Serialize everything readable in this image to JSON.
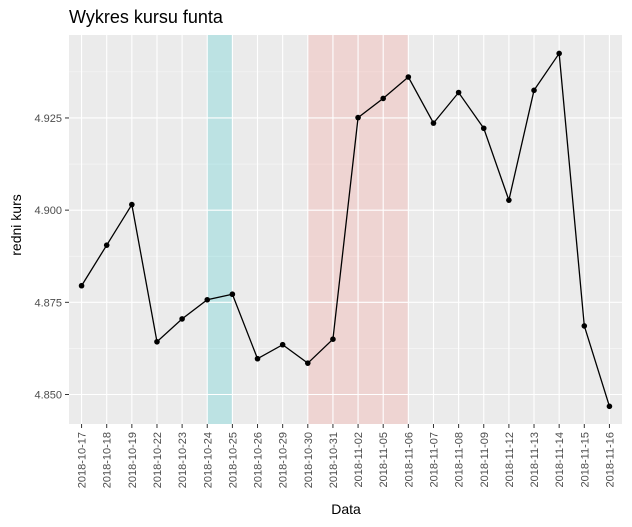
{
  "chart_data": {
    "type": "line",
    "title": "Wykres kursu funta",
    "xlabel": "Data",
    "ylabel": "redni kurs",
    "categories": [
      "2018-10-17",
      "2018-10-18",
      "2018-10-19",
      "2018-10-22",
      "2018-10-23",
      "2018-10-24",
      "2018-10-25",
      "2018-10-26",
      "2018-10-29",
      "2018-10-30",
      "2018-10-31",
      "2018-11-02",
      "2018-11-05",
      "2018-11-06",
      "2018-11-07",
      "2018-11-08",
      "2018-11-09",
      "2018-11-12",
      "2018-11-13",
      "2018-11-14",
      "2018-11-15",
      "2018-11-16"
    ],
    "values": [
      4.8795,
      4.8905,
      4.9015,
      4.8643,
      4.8705,
      4.8757,
      4.8772,
      4.8597,
      4.8635,
      4.8585,
      4.865,
      4.9251,
      4.9303,
      4.9361,
      4.9236,
      4.9319,
      4.9222,
      4.9027,
      4.9325,
      4.9425,
      4.8686,
      4.8468
    ],
    "ylim": [
      4.842,
      4.9475
    ],
    "yticks": [
      4.85,
      4.875,
      4.9,
      4.925
    ],
    "ytick_labels": [
      "4.850",
      "4.875",
      "4.900",
      "4.925"
    ],
    "highlight_bands": [
      {
        "from": "2018-10-24",
        "to": "2018-10-25",
        "color": "#00bfc4",
        "opacity": 0.2
      },
      {
        "from": "2018-10-30",
        "to": "2018-11-06",
        "color": "#f8766d",
        "opacity": 0.2
      }
    ],
    "grid": true,
    "legend": "none",
    "colors": {
      "panel_background": "#ebebeb",
      "grid_major": "#ffffff",
      "line": "#000000",
      "point": "#000000",
      "tick_label": "#4d4d4d"
    }
  }
}
